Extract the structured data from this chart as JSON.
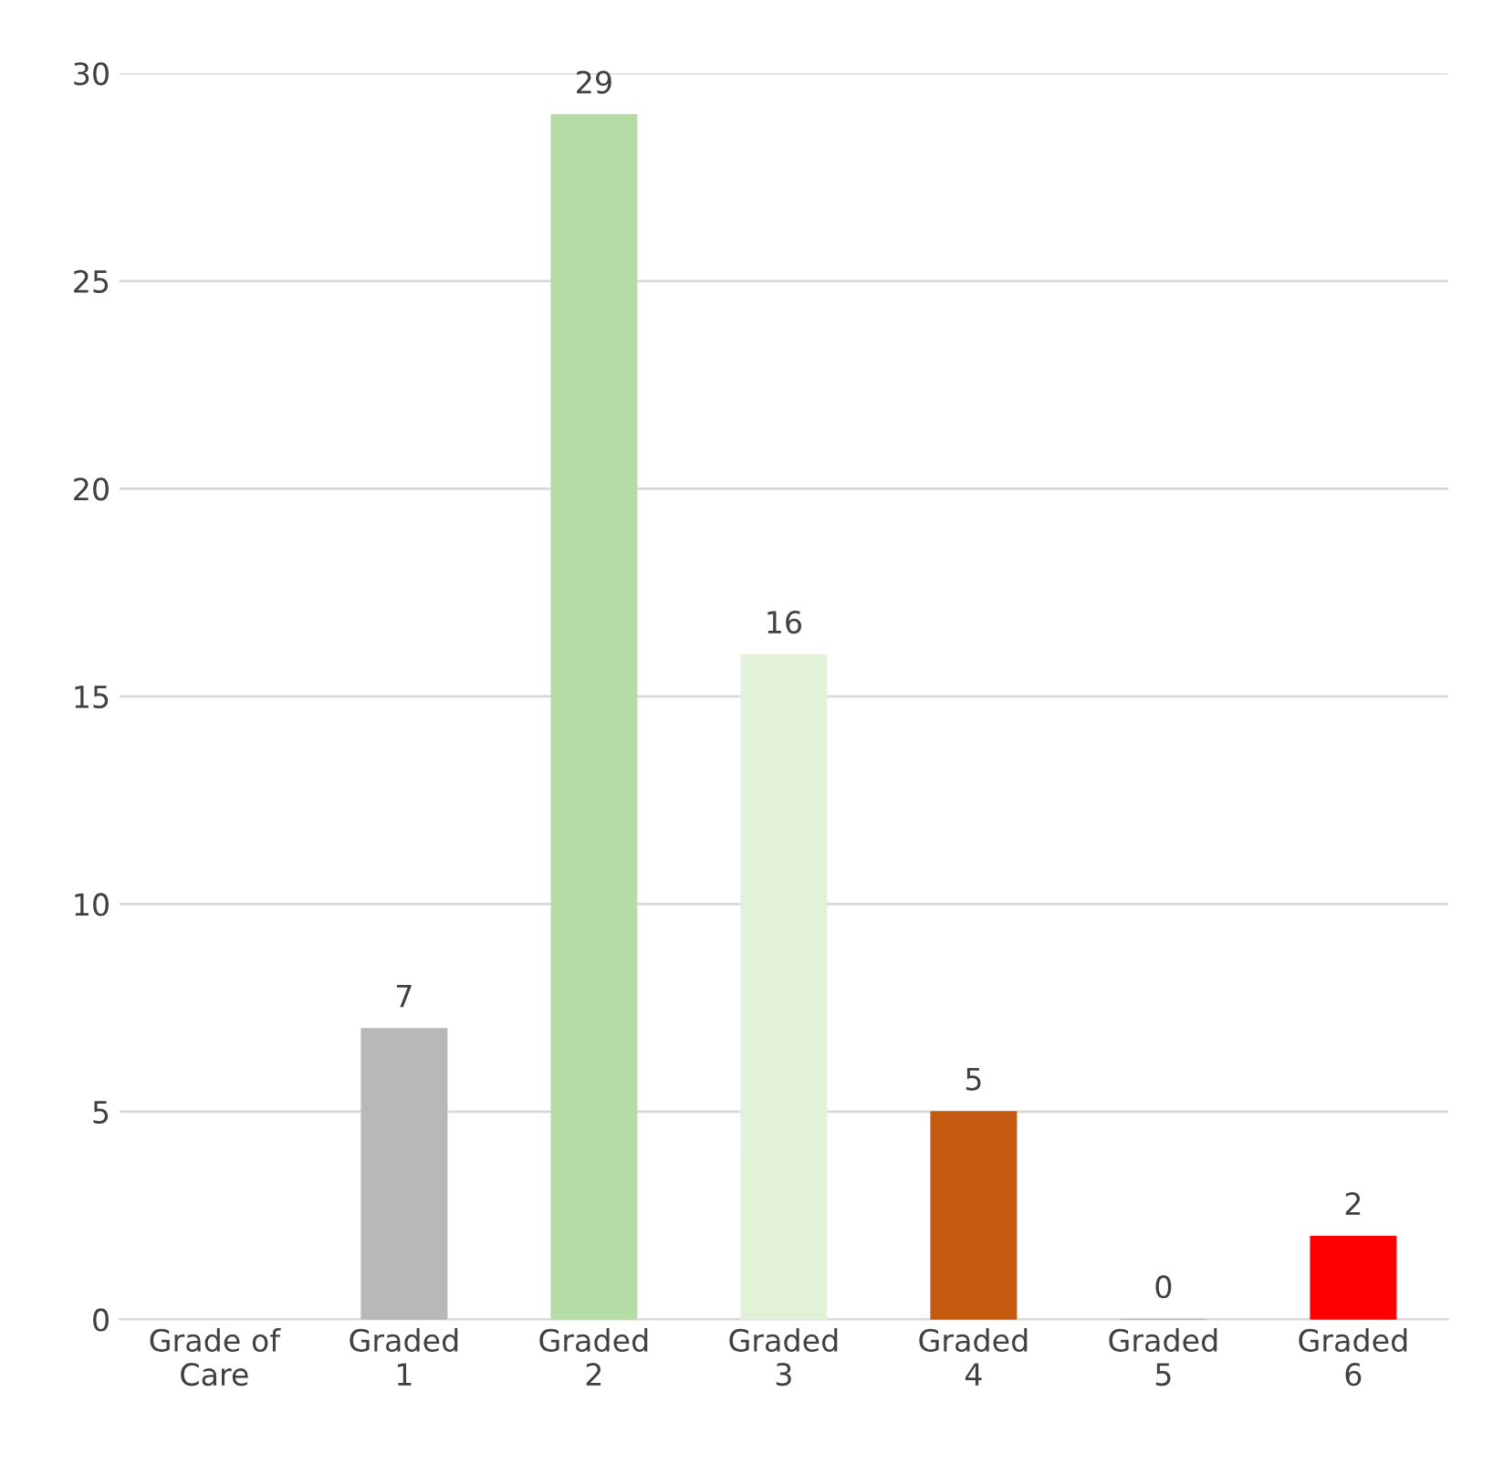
{
  "chart_data": {
    "type": "bar",
    "categories": [
      "Grade of\nCare",
      "Graded\n1",
      "Graded\n2",
      "Graded\n3",
      "Graded\n4",
      "Graded\n5",
      "Graded\n6"
    ],
    "values": [
      null,
      7,
      29,
      16,
      5,
      0,
      2
    ],
    "colors": [
      "#b8b8b8",
      "#b8b8b8",
      "#b5dca5",
      "#e2f2d8",
      "#c55a11",
      "#a6a6a6",
      "#ff0000"
    ],
    "ylim": [
      0,
      30
    ],
    "yticks": [
      0,
      5,
      10,
      15,
      20,
      25,
      30
    ],
    "grid": "y",
    "data_labels": true
  }
}
